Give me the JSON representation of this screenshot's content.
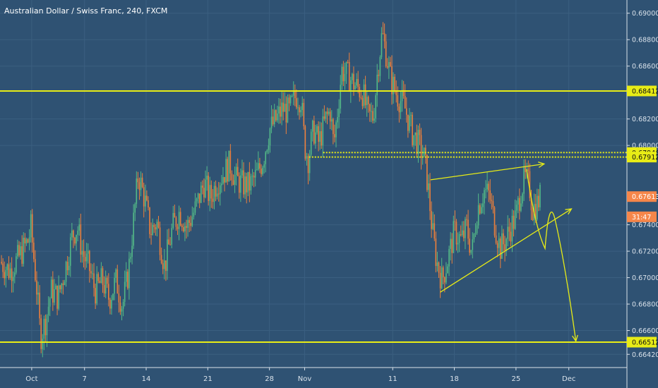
{
  "chart_data": {
    "type": "candlestick",
    "title": "Australian Dollar / Swiss Franc, 240, FXCM",
    "ylim": [
      0.6632,
      0.691
    ],
    "x_ticks": [
      {
        "label": "Oct",
        "day": 1
      },
      {
        "label": "7",
        "day": 7
      },
      {
        "label": "14",
        "day": 14
      },
      {
        "label": "21",
        "day": 21
      },
      {
        "label": "28",
        "day": 28
      },
      {
        "label": "Nov",
        "day": 32
      },
      {
        "label": "11",
        "day": 42
      },
      {
        "label": "18",
        "day": 49
      },
      {
        "label": "25",
        "day": 56
      },
      {
        "label": "Dec",
        "day": 62
      }
    ],
    "x_range_days": [
      -2.6,
      68.6
    ],
    "y_ticks": [
      0.69,
      0.688,
      0.686,
      0.682,
      0.68,
      0.674,
      0.672,
      0.67,
      0.668,
      0.666,
      0.6642
    ],
    "y_tick_labels": [
      "0.69000",
      "0.68800",
      "0.68600",
      "0.68200",
      "0.68000",
      "0.67400",
      "0.67200",
      "0.67000",
      "0.66800",
      "0.66600",
      "0.66420"
    ],
    "price_labels": [
      {
        "value": 0.68412,
        "text": "0.68412",
        "color": "#e8ec16"
      },
      {
        "value": 0.67946,
        "text": "0.67946",
        "color": "#e8ec16"
      },
      {
        "value": 0.67912,
        "text": "0.67912",
        "color": "#e8ec16"
      },
      {
        "value": 0.67613,
        "text": "0.67613",
        "color": "#f5864a"
      },
      {
        "value": 0.6746,
        "text": "31:47",
        "color": "#f5864a"
      },
      {
        "value": 0.66512,
        "text": "0.66512",
        "color": "#e8ec16"
      }
    ],
    "horizontal_levels": [
      {
        "value": 0.68412,
        "style": "solid",
        "from_day": -2.6
      },
      {
        "value": 0.66512,
        "style": "solid",
        "from_day": -2.6
      },
      {
        "value": 0.67946,
        "style": "dotted",
        "from_day": 34.1
      },
      {
        "value": 0.67912,
        "style": "dotted",
        "from_day": 32.5
      }
    ],
    "trendlines": [
      {
        "from": [
          46.3,
          0.6774
        ],
        "to": [
          59.2,
          0.6786
        ]
      },
      {
        "from": [
          47.4,
          0.6689
        ],
        "to": [
          62.3,
          0.6752
        ]
      }
    ],
    "projection": [
      [
        57.2,
        0.6782
      ],
      [
        59.3,
        0.6722
      ],
      [
        60.4,
        0.6745
      ],
      [
        62.8,
        0.6652
      ]
    ],
    "ohlc_path": [
      [
        -2.6,
        0.6712
      ],
      [
        -1.5,
        0.6705
      ],
      [
        -0.5,
        0.6715
      ],
      [
        0.6,
        0.6728
      ],
      [
        0.9,
        0.6738
      ],
      [
        1.6,
        0.669
      ],
      [
        2.0,
        0.6655
      ],
      [
        2.6,
        0.6668
      ],
      [
        3.2,
        0.669
      ],
      [
        4.0,
        0.6685
      ],
      [
        5.0,
        0.6712
      ],
      [
        5.6,
        0.6732
      ],
      [
        6.2,
        0.6738
      ],
      [
        6.8,
        0.6718
      ],
      [
        7.5,
        0.6708
      ],
      [
        8.2,
        0.669
      ],
      [
        9.0,
        0.6698
      ],
      [
        9.8,
        0.6684
      ],
      [
        10.6,
        0.6698
      ],
      [
        11.3,
        0.6678
      ],
      [
        12.0,
        0.6705
      ],
      [
        12.6,
        0.6745
      ],
      [
        13.1,
        0.6778
      ],
      [
        13.8,
        0.676
      ],
      [
        14.5,
        0.6735
      ],
      [
        15.2,
        0.6742
      ],
      [
        16.1,
        0.6708
      ],
      [
        17.0,
        0.6738
      ],
      [
        17.8,
        0.675
      ],
      [
        18.6,
        0.6738
      ],
      [
        19.6,
        0.6752
      ],
      [
        20.6,
        0.6772
      ],
      [
        21.3,
        0.676
      ],
      [
        22.0,
        0.6772
      ],
      [
        22.7,
        0.6778
      ],
      [
        23.5,
        0.6786
      ],
      [
        24.2,
        0.6774
      ],
      [
        25.1,
        0.677
      ],
      [
        25.8,
        0.677
      ],
      [
        26.6,
        0.6778
      ],
      [
        27.3,
        0.679
      ],
      [
        28.0,
        0.6812
      ],
      [
        28.8,
        0.682
      ],
      [
        29.5,
        0.6828
      ],
      [
        30.2,
        0.6825
      ],
      [
        31.0,
        0.6838
      ],
      [
        31.6,
        0.6835
      ],
      [
        32.0,
        0.68
      ],
      [
        32.4,
        0.679
      ],
      [
        33.0,
        0.6812
      ],
      [
        33.6,
        0.6802
      ],
      [
        34.4,
        0.682
      ],
      [
        34.9,
        0.6826
      ],
      [
        35.3,
        0.68
      ],
      [
        35.8,
        0.683
      ],
      [
        36.2,
        0.6857
      ],
      [
        37.0,
        0.6852
      ],
      [
        37.8,
        0.6845
      ],
      [
        38.6,
        0.684
      ],
      [
        39.2,
        0.6822
      ],
      [
        39.8,
        0.6822
      ],
      [
        40.3,
        0.6858
      ],
      [
        40.8,
        0.6885
      ],
      [
        41.3,
        0.6868
      ],
      [
        41.8,
        0.6849
      ],
      [
        42.5,
        0.6838
      ],
      [
        43.3,
        0.683
      ],
      [
        44.2,
        0.681
      ],
      [
        45.0,
        0.68
      ],
      [
        45.6,
        0.679
      ],
      [
        46.0,
        0.677
      ],
      [
        46.5,
        0.6735
      ],
      [
        47.0,
        0.6712
      ],
      [
        47.6,
        0.6698
      ],
      [
        48.2,
        0.6712
      ],
      [
        49.0,
        0.6735
      ],
      [
        49.8,
        0.6728
      ],
      [
        50.4,
        0.6738
      ],
      [
        51.0,
        0.6718
      ],
      [
        51.6,
        0.6752
      ],
      [
        52.4,
        0.6766
      ],
      [
        53.0,
        0.6762
      ],
      [
        53.6,
        0.674
      ],
      [
        54.2,
        0.6722
      ],
      [
        54.8,
        0.6728
      ],
      [
        55.4,
        0.6738
      ],
      [
        56.0,
        0.6746
      ],
      [
        56.5,
        0.6765
      ],
      [
        57.0,
        0.6775
      ],
      [
        57.5,
        0.677
      ],
      [
        57.9,
        0.6752
      ],
      [
        58.4,
        0.6756
      ],
      [
        58.8,
        0.6762
      ]
    ],
    "candle_colors": {
      "up": "#53b987",
      "down": "#eb7f3c"
    },
    "grid": true
  }
}
